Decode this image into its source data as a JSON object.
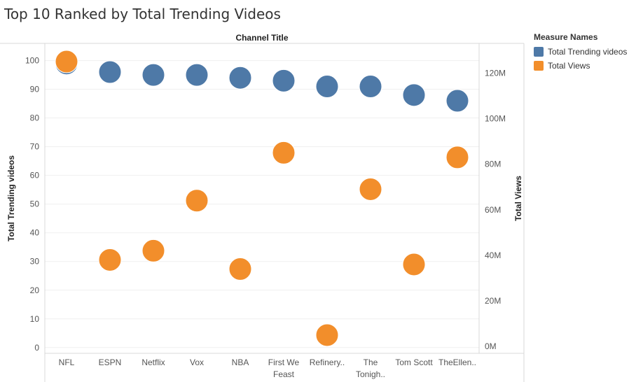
{
  "title": "Top 10 Ranked by Total Trending Videos",
  "header": "Channel Title",
  "legend": {
    "title": "Measure Names",
    "items": [
      {
        "label": "Total Trending videos",
        "color": "#4e79a7"
      },
      {
        "label": "Total Views",
        "color": "#f28e2b"
      }
    ]
  },
  "chart_data": {
    "type": "scatter",
    "categories": [
      "NFL",
      "ESPN",
      "Netflix",
      "Vox",
      "NBA",
      "First We Feast",
      "Refinery..",
      "The Tonigh..",
      "Tom Scott",
      "TheEllen.."
    ],
    "category_labels": [
      [
        "NFL"
      ],
      [
        "ESPN"
      ],
      [
        "Netflix"
      ],
      [
        "Vox"
      ],
      [
        "NBA"
      ],
      [
        "First We",
        "Feast"
      ],
      [
        "Refinery.."
      ],
      [
        "The",
        "Tonigh.."
      ],
      [
        "Tom Scott"
      ],
      [
        "TheEllen.."
      ]
    ],
    "series": [
      {
        "name": "Total Trending videos",
        "axis": "left",
        "color": "#4e79a7",
        "values": [
          99,
          96,
          95,
          95,
          94,
          93,
          91,
          91,
          88,
          86
        ]
      },
      {
        "name": "Total Views",
        "axis": "right",
        "color": "#f28e2b",
        "values": [
          125000000,
          38000000,
          42000000,
          64000000,
          34000000,
          85000000,
          5000000,
          69000000,
          36000000,
          83000000
        ]
      }
    ],
    "ylabel": "Total Trending videos",
    "ylim": [
      -2,
      106
    ],
    "yticks": [
      0,
      10,
      20,
      30,
      40,
      50,
      60,
      70,
      80,
      90,
      100
    ],
    "y2label": "Total Views",
    "y2lim": [
      -3000000,
      133000000
    ],
    "y2ticks": [
      0,
      20000000,
      40000000,
      60000000,
      80000000,
      100000000,
      120000000
    ],
    "y2ticklabels": [
      "0M",
      "20M",
      "40M",
      "60M",
      "80M",
      "100M",
      "120M"
    ],
    "grid": true
  }
}
